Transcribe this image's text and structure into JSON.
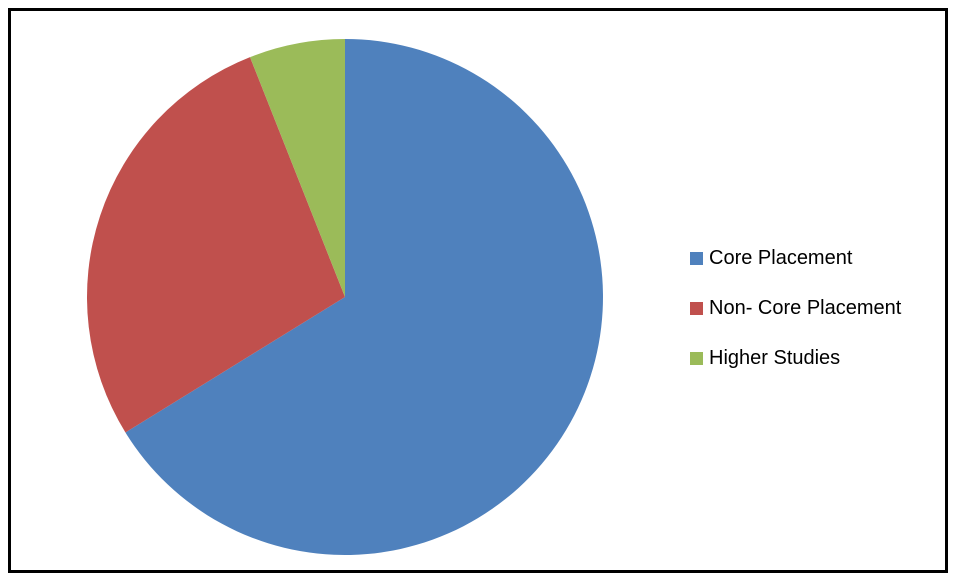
{
  "chart_data": {
    "type": "pie",
    "title": "",
    "slices": [
      {
        "label": "Core Placement",
        "value": 66.2,
        "color": "#4F81BD"
      },
      {
        "label": "Non- Core Placement",
        "value": 27.8,
        "color": "#C0504D"
      },
      {
        "label": "Higher Studies",
        "value": 6.0,
        "color": "#9BBB59"
      }
    ],
    "start_angle_deg": 0,
    "direction": "clockwise",
    "legend_position": "right"
  }
}
